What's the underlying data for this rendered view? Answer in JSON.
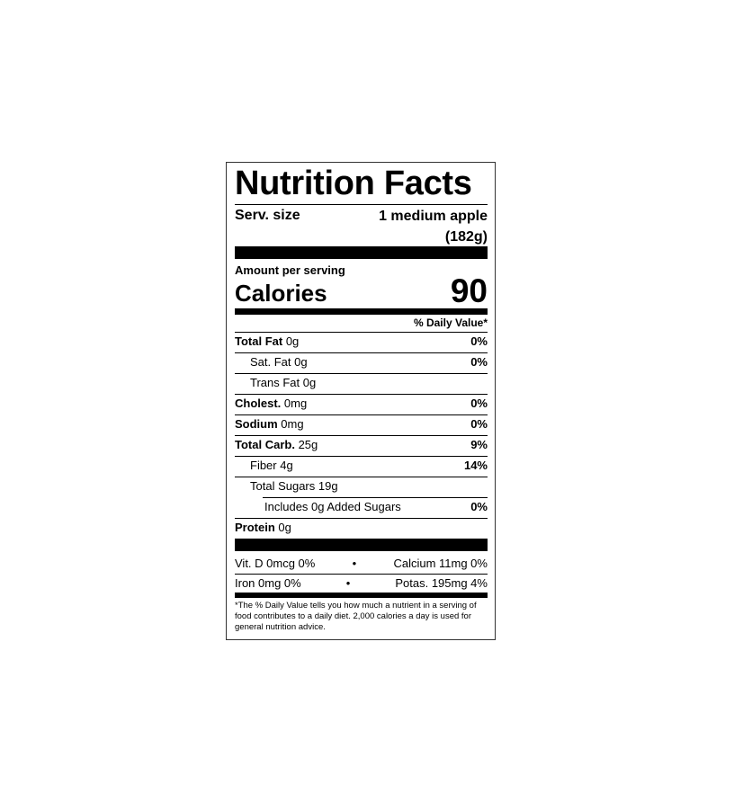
{
  "title": "Nutrition Facts",
  "serving": {
    "label": "Serv. size",
    "value": "1 medium apple (182g)"
  },
  "amount_per_serving": "Amount per serving",
  "calories": {
    "label": "Calories",
    "value": "90"
  },
  "daily_value_header": "% Daily Value*",
  "nutrients": [
    {
      "name": "Total Fat",
      "amount": "0g",
      "dv": "0%"
    },
    {
      "name": "Sat. Fat",
      "amount": "0g",
      "dv": "0%"
    },
    {
      "name": "Trans Fat",
      "amount": "0g"
    },
    {
      "name": "Cholest.",
      "amount": "0mg",
      "dv": "0%"
    },
    {
      "name": "Sodium",
      "amount": "0mg",
      "dv": "0%"
    },
    {
      "name": "Total Carb.",
      "amount": "25g",
      "dv": "9%"
    },
    {
      "name": "Fiber",
      "amount": "4g",
      "dv": "14%"
    },
    {
      "name": "Total Sugars",
      "amount": "19g"
    },
    {
      "name": "Includes 0g Added Sugars",
      "dv": "0%"
    },
    {
      "name": "Protein",
      "amount": "0g"
    }
  ],
  "minerals": [
    [
      "Vit. D 0mcg 0%",
      "Calcium 11mg 0%"
    ],
    [
      "Iron 0mg 0%",
      "Potas. 195mg 4%"
    ]
  ],
  "footnote": "*The % Daily Value tells you how much a nutrient in a serving of food contributes to a daily diet. 2,000 calories a day is used for general nutrition advice."
}
